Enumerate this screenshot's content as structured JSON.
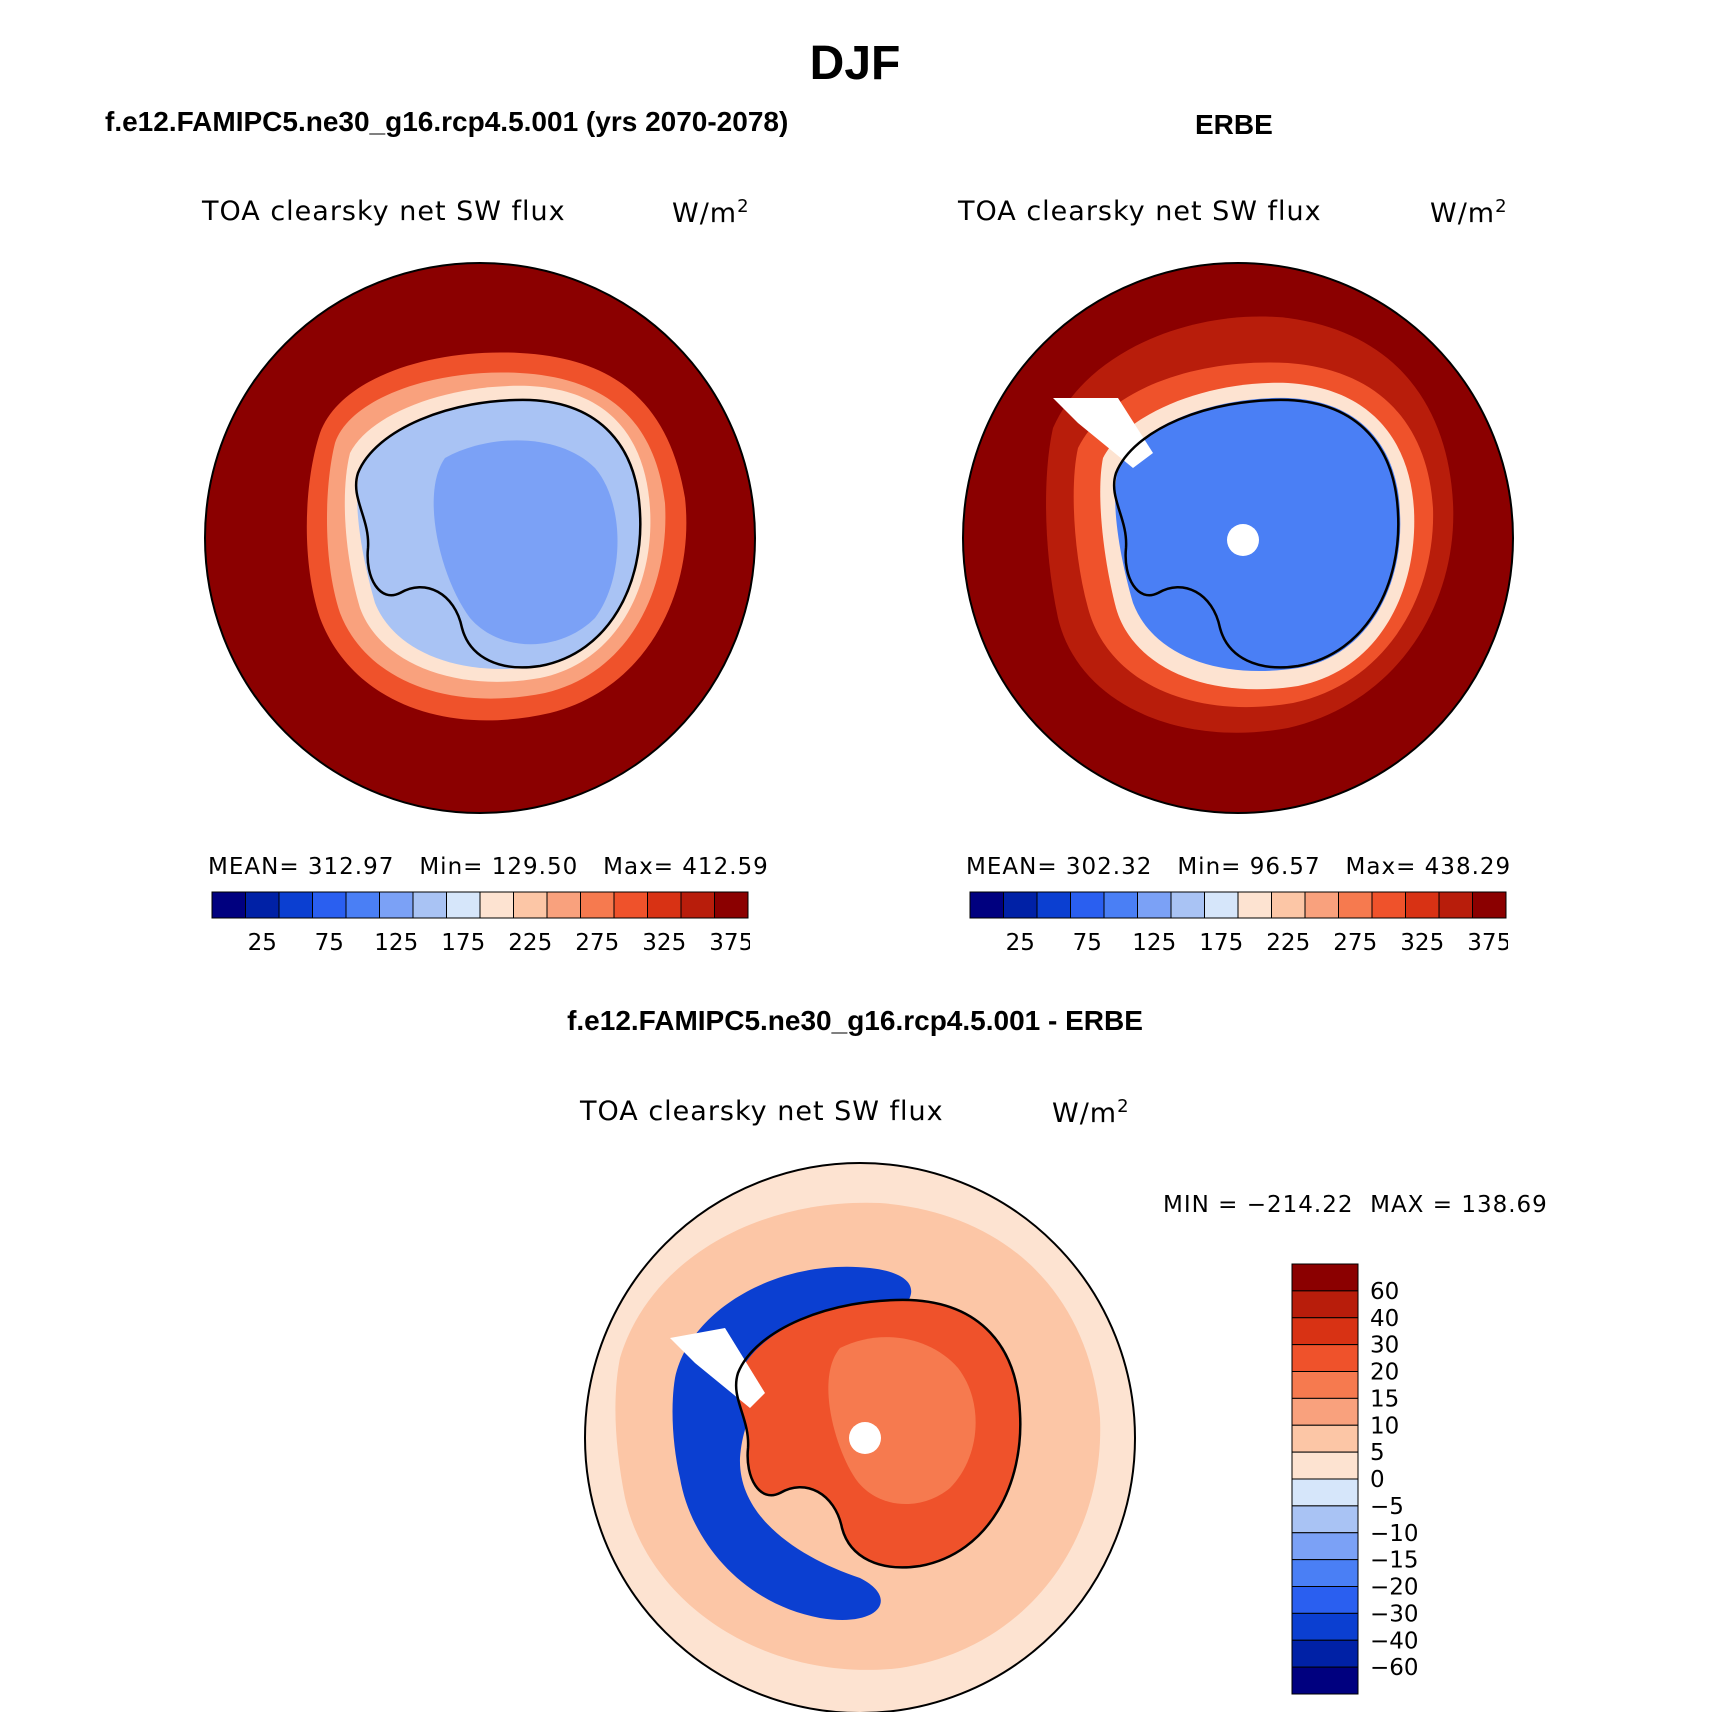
{
  "page": {
    "title": "DJF",
    "footer_caption": ""
  },
  "panels": [
    {
      "heading": "f.e12.FAMIPC5.ne30_g16.rcp4.5.001 (yrs 2070-2078)",
      "variable": "TOA clearsky net SW flux",
      "units": "W/m",
      "units_sup": "2",
      "stats": {
        "mean_label": "MEAN=",
        "mean": "312.97",
        "min_label": "Min=",
        "min": "129.50",
        "max_label": "Max=",
        "max": "412.59"
      },
      "colorbar_ticks": [
        "25",
        "75",
        "125",
        "175",
        "225",
        "275",
        "325",
        "375"
      ]
    },
    {
      "heading": "ERBE",
      "variable": "TOA clearsky net SW flux",
      "units": "W/m",
      "units_sup": "2",
      "stats": {
        "mean_label": "MEAN=",
        "mean": "302.32",
        "min_label": "Min=",
        "min": "96.57",
        "max_label": "Max=",
        "max": "438.29"
      },
      "colorbar_ticks": [
        "25",
        "75",
        "125",
        "175",
        "225",
        "275",
        "325",
        "375"
      ]
    },
    {
      "heading": "f.e12.FAMIPC5.ne30_g16.rcp4.5.001 - ERBE",
      "variable": "TOA clearsky net SW flux",
      "units": "W/m",
      "units_sup": "2",
      "stats": {
        "min_max": "MIN = −214.22  MAX = 138.69"
      },
      "colorbar_ticks": [
        "60",
        "40",
        "30",
        "20",
        "15",
        "10",
        "5",
        "0",
        "−5",
        "−10",
        "−15",
        "−20",
        "−30",
        "−40",
        "−60"
      ]
    }
  ],
  "colors": {
    "abs_scale": [
      "#00007f",
      "#0021a6",
      "#0b3fd1",
      "#2a5ff0",
      "#4a7ff5",
      "#7ba1f6",
      "#a9c3f4",
      "#d6e6fa",
      "#fde3d1",
      "#fcc6a6",
      "#f9a17d",
      "#f67a4f",
      "#ef522b",
      "#d83214",
      "#b81d0b",
      "#8b0000"
    ],
    "diff_scale": [
      "#8b0000",
      "#b81d0b",
      "#d83214",
      "#ef522b",
      "#f67a4f",
      "#f9a17d",
      "#fcc6a6",
      "#fde3d1",
      "#d6e6fa",
      "#a9c3f4",
      "#7ba1f6",
      "#4a7ff5",
      "#2a5ff0",
      "#0b3fd1",
      "#0021a6",
      "#00007f"
    ]
  }
}
